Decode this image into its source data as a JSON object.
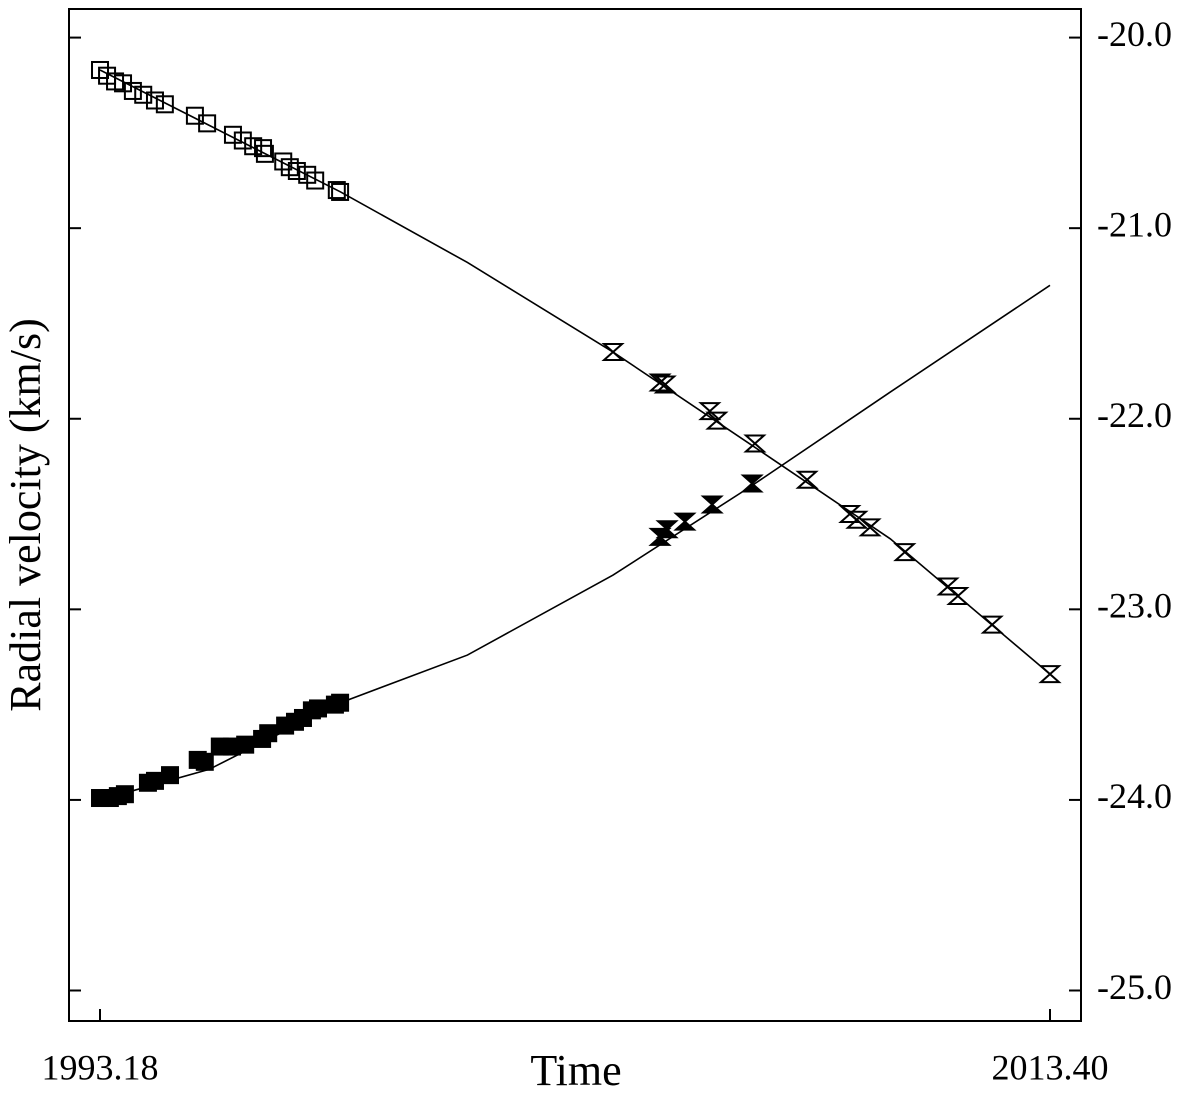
{
  "chart_data": {
    "type": "scatter",
    "xlabel": "Time",
    "ylabel": "Radial velocity (km/s)",
    "xlim": [
      1992.52,
      2014.06
    ],
    "ylim": [
      -25.16,
      -19.85
    ],
    "xticks": [
      1993.18,
      {
        "value": 2013.4,
        "label": "2013.40"
      }
    ],
    "yticks": [
      {
        "value": -20,
        "label": "-20.0"
      },
      {
        "value": -21,
        "label": "-21.0"
      },
      {
        "value": -22,
        "label": "-22.0"
      },
      {
        "value": -23,
        "label": "-23.0"
      },
      {
        "value": -24,
        "label": "-24.0"
      },
      {
        "value": -25,
        "label": "-25.0"
      }
    ],
    "series": [
      {
        "mode": "line",
        "color": "#000000",
        "x": [
          1993.18,
          1995.5,
          1998.3,
          2001,
          2004.1,
          2007,
          2010,
          2013.4
        ],
        "values": [
          -20.17,
          -20.46,
          -20.81,
          -21.18,
          -21.65,
          -22.13,
          -22.63,
          -23.34
        ]
      },
      {
        "mode": "line",
        "color": "#000000",
        "x": [
          1993.18,
          1995.5,
          1998.3,
          2001,
          2004.1,
          2007,
          2010,
          2013.4
        ],
        "values": [
          -24.0,
          -23.84,
          -23.49,
          -23.24,
          -22.82,
          -22.36,
          -21.86,
          -21.3
        ]
      },
      {
        "mode": "markers",
        "marker": "square",
        "filled": false,
        "color": "#000000",
        "x": [
          1993.18,
          1993.33,
          1993.5,
          1993.67,
          1993.88,
          1994.1,
          1994.35,
          1994.56,
          1995.2,
          1995.46,
          1996.01,
          1996.22,
          1996.44,
          1996.65,
          1996.69,
          1997.08,
          1997.22,
          1997.37,
          1997.59,
          1997.76,
          1998.22,
          1998.29
        ],
        "values": [
          -20.17,
          -20.2,
          -20.23,
          -20.24,
          -20.28,
          -20.3,
          -20.33,
          -20.35,
          -20.41,
          -20.45,
          -20.51,
          -20.54,
          -20.57,
          -20.58,
          -20.61,
          -20.65,
          -20.68,
          -20.7,
          -20.72,
          -20.75,
          -20.8,
          -20.81
        ]
      },
      {
        "mode": "markers",
        "marker": "square",
        "filled": true,
        "color": "#000000",
        "x": [
          1993.18,
          1993.39,
          1993.56,
          1993.71,
          1994.2,
          1994.35,
          1994.67,
          1995.26,
          1995.41,
          1995.73,
          1995.99,
          1996.27,
          1996.63,
          1996.76,
          1997.12,
          1997.33,
          1997.5,
          1997.69,
          1997.82,
          1998.18,
          1998.29
        ],
        "values": [
          -23.99,
          -23.99,
          -23.98,
          -23.97,
          -23.91,
          -23.9,
          -23.87,
          -23.79,
          -23.8,
          -23.72,
          -23.72,
          -23.71,
          -23.68,
          -23.65,
          -23.61,
          -23.59,
          -23.57,
          -23.53,
          -23.52,
          -23.5,
          -23.49
        ]
      },
      {
        "mode": "markers",
        "marker": "hourglass",
        "filled": false,
        "color": "#000000",
        "x": [
          2004.1,
          2005.1,
          2005.21,
          2006.16,
          2006.31,
          2007.12,
          2008.23,
          2009.14,
          2009.29,
          2009.57,
          2010.31,
          2011.23,
          2011.44,
          2012.17,
          2013.4
        ],
        "values": [
          -21.65,
          -21.81,
          -21.82,
          -21.96,
          -22.01,
          -22.13,
          -22.32,
          -22.5,
          -22.53,
          -22.57,
          -22.7,
          -22.88,
          -22.93,
          -23.08,
          -23.34
        ]
      },
      {
        "mode": "markers",
        "marker": "hourglass",
        "filled": true,
        "color": "#000000",
        "x": [
          2005.1,
          2005.25,
          2005.63,
          2006.21,
          2007.06
        ],
        "values": [
          -22.62,
          -22.58,
          -22.54,
          -22.45,
          -22.34
        ]
      }
    ]
  }
}
